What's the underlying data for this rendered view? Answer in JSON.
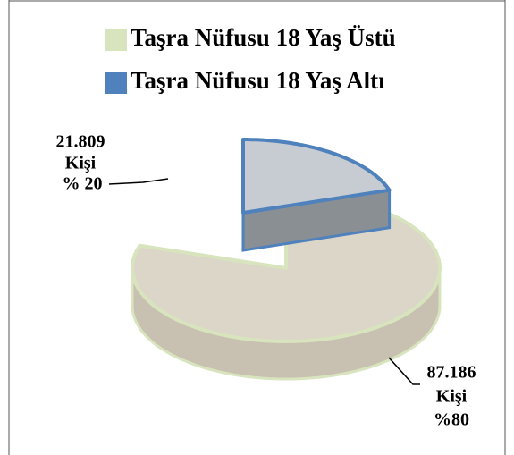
{
  "chart_data": {
    "type": "pie3d",
    "categories": [
      "Taşra Nüfusu 18 Yaş Üstü",
      "Taşra Nüfusu 18 Yaş Altı"
    ],
    "values": [
      87186,
      21809
    ],
    "value_labels": [
      "87.186",
      "21.809"
    ],
    "unit_label": "Kişi",
    "percents": [
      80,
      20
    ],
    "percent_labels": [
      "%80",
      "% 20"
    ],
    "colors": [
      "#d7e4bd",
      "#4f81bd"
    ]
  }
}
